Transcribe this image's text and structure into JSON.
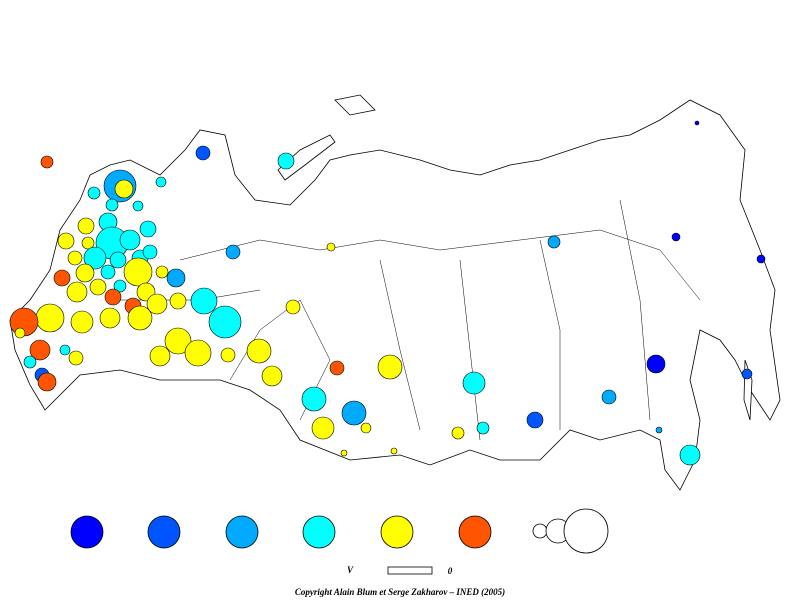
{
  "legend": {
    "low_label": "V",
    "high_label": "0"
  },
  "footer": {
    "copyright": "Copyright Alain Blum et Serge Zakharov – INED (2005)"
  }
}
